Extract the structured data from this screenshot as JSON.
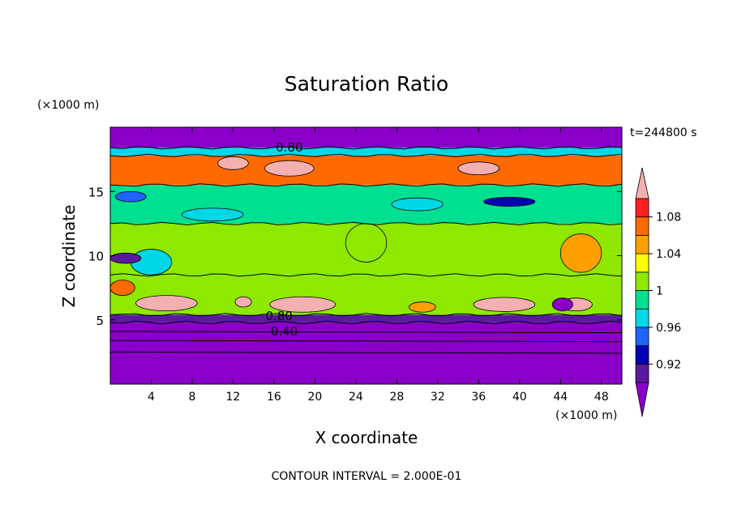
{
  "chart_data": {
    "type": "heatmap",
    "title": "Saturation Ratio",
    "xlabel": "X coordinate",
    "ylabel": "Z coordinate",
    "x_unit": "(×1000 m)",
    "y_unit": "(×1000 m)",
    "time_label": "t=244800 s",
    "contour_interval_label": "CONTOUR INTERVAL = 2.000E-01",
    "xlim": [
      0,
      50
    ],
    "ylim": [
      0,
      20
    ],
    "x_ticks": [
      4,
      8,
      12,
      16,
      20,
      24,
      28,
      32,
      36,
      40,
      44,
      48
    ],
    "y_ticks": [
      5,
      10,
      15
    ],
    "contour_labels": [
      {
        "text": "0.80",
        "x": 17.5,
        "z": 18.1
      },
      {
        "text": "0.80",
        "x": 16.5,
        "z": 5.0
      },
      {
        "text": "0.40",
        "x": 17.0,
        "z": 3.8
      }
    ],
    "colorbar": {
      "boundaries": [
        0.9,
        0.92,
        0.94,
        0.96,
        0.98,
        1.0,
        1.02,
        1.04,
        1.06,
        1.08,
        1.1
      ],
      "labels": [
        "0.92",
        "0.96",
        "1",
        "1.04",
        "1.08"
      ],
      "label_values": [
        0.92,
        0.96,
        1.0,
        1.04,
        1.08
      ],
      "colors": [
        "#5a1aa0",
        "#0000b4",
        "#1e64ff",
        "#00d8e8",
        "#00e090",
        "#8ee800",
        "#ffff00",
        "#ffa000",
        "#ff6a00",
        "#ff2020"
      ],
      "low_color": "#8a00c8",
      "high_color": "#f4b0b0"
    },
    "layers": [
      {
        "z": [
          0,
          4.8
        ],
        "value": 0.4
      },
      {
        "z": [
          4.8,
          5.4
        ],
        "value": 0.91
      },
      {
        "z": [
          5.4,
          8.5
        ],
        "value": 1.01
      },
      {
        "z": [
          8.5,
          12.5
        ],
        "value": 1.0
      },
      {
        "z": [
          12.5,
          15.5
        ],
        "value": 0.985
      },
      {
        "z": [
          15.5,
          17.8
        ],
        "value": 1.07
      },
      {
        "z": [
          17.8,
          18.4
        ],
        "value": 0.96
      },
      {
        "z": [
          18.4,
          20
        ],
        "value": 0.7
      }
    ],
    "patches": [
      {
        "x": 5.5,
        "z": 6.3,
        "rx": 3.0,
        "rz": 0.6,
        "value": 1.12
      },
      {
        "x": 18.8,
        "z": 6.2,
        "rx": 3.2,
        "rz": 0.6,
        "value": 1.12
      },
      {
        "x": 38.5,
        "z": 6.2,
        "rx": 3.0,
        "rz": 0.55,
        "value": 1.12
      },
      {
        "x": 45.5,
        "z": 6.2,
        "rx": 1.6,
        "rz": 0.5,
        "value": 1.12
      },
      {
        "x": 13.0,
        "z": 6.4,
        "rx": 0.8,
        "rz": 0.4,
        "value": 1.12
      },
      {
        "x": 30.5,
        "z": 6.0,
        "rx": 1.3,
        "rz": 0.4,
        "value": 1.05
      },
      {
        "x": 44.2,
        "z": 6.2,
        "rx": 1.0,
        "rz": 0.5,
        "value": 0.89
      },
      {
        "x": 1.2,
        "z": 7.5,
        "rx": 1.2,
        "rz": 0.6,
        "value": 1.06
      },
      {
        "x": 17.5,
        "z": 16.8,
        "rx": 2.4,
        "rz": 0.6,
        "value": 1.12
      },
      {
        "x": 12.0,
        "z": 17.2,
        "rx": 1.5,
        "rz": 0.5,
        "value": 1.1
      },
      {
        "x": 36.0,
        "z": 16.8,
        "rx": 2.0,
        "rz": 0.5,
        "value": 1.1
      },
      {
        "x": 2.0,
        "z": 14.6,
        "rx": 1.5,
        "rz": 0.4,
        "value": 0.94
      },
      {
        "x": 39.0,
        "z": 14.2,
        "rx": 2.5,
        "rz": 0.35,
        "value": 0.93
      },
      {
        "x": 10.0,
        "z": 13.2,
        "rx": 3.0,
        "rz": 0.5,
        "value": 0.97
      },
      {
        "x": 30.0,
        "z": 14.0,
        "rx": 2.5,
        "rz": 0.5,
        "value": 0.975
      },
      {
        "x": 46.0,
        "z": 10.2,
        "rx": 2.0,
        "rz": 1.5,
        "value": 1.04
      },
      {
        "x": 4.0,
        "z": 9.5,
        "rx": 2.0,
        "rz": 1.0,
        "value": 0.975
      },
      {
        "x": 25.0,
        "z": 11.0,
        "rx": 2.0,
        "rz": 1.5,
        "value": 1.01
      },
      {
        "x": 1.5,
        "z": 9.8,
        "rx": 1.5,
        "rz": 0.4,
        "value": 0.91
      }
    ]
  }
}
